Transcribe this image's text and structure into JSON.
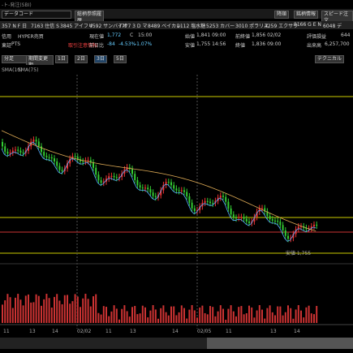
{
  "window": {
    "title": "-ト-発注(SBI)"
  },
  "toolbar": {
    "code_input": "データコード",
    "history": "総柄参照履歴",
    "buttons": [
      "降順",
      "銘柄情報",
      "スピード注文"
    ]
  },
  "tickers": [
    "357 N F 日",
    "7163 住信 S",
    "3845 アイフリ",
    "4592 サンバイオ",
    "7777 3 D マ",
    "8489 ベイカレ",
    "2112 塩水糖",
    "5253 カバー",
    "3010 ポラリス",
    "4259 エクサウ",
    "9166 G E N",
    "6048 デ"
  ],
  "quote": {
    "row1": [
      "信用",
      "HYPER売買",
      "現在値",
      "1,772",
      "C",
      "15:00",
      "始値",
      "1,841 09:00",
      "前終値",
      "1,856 02/02",
      "評価損益",
      "644"
    ],
    "row2": [
      "東証",
      "PTS",
      "取引注意情報",
      "前日比",
      "-84",
      "-4.53%",
      "-1.07%",
      "安値",
      "1,755 14:56",
      "終値",
      "1,836 09:00",
      "出来高",
      "6,257,700"
    ]
  },
  "period": {
    "mode": "分足",
    "change": "期間変更期",
    "days": [
      "1日",
      "2日",
      "3日",
      "5日"
    ],
    "technical": "テクニカル"
  },
  "chart": {
    "legend": [
      "SMA(10)",
      "SMA(75)"
    ],
    "low_note": "安値 1,755",
    "x_labels": [
      "11",
      "13",
      "14",
      "02/02",
      "11",
      "13",
      "14",
      "02/05",
      "11",
      "13",
      "14"
    ]
  }
}
